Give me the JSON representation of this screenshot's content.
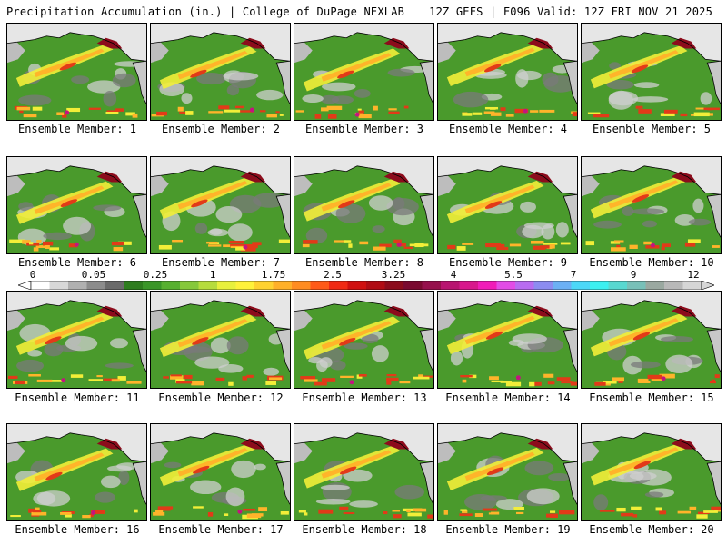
{
  "header": {
    "left": "Precipitation Accumulation (in.) | College of DuPage NEXLAB",
    "right": "12Z GEFS | F096 Valid: 12Z FRI NOV 21 2025"
  },
  "members": [
    {
      "label": "Ensemble Member: 1"
    },
    {
      "label": "Ensemble Member: 2"
    },
    {
      "label": "Ensemble Member: 3"
    },
    {
      "label": "Ensemble Member: 4"
    },
    {
      "label": "Ensemble Member: 5"
    },
    {
      "label": "Ensemble Member: 6"
    },
    {
      "label": "Ensemble Member: 7"
    },
    {
      "label": "Ensemble Member: 8"
    },
    {
      "label": "Ensemble Member: 9"
    },
    {
      "label": "Ensemble Member: 10"
    },
    {
      "label": "Ensemble Member: 11"
    },
    {
      "label": "Ensemble Member: 12"
    },
    {
      "label": "Ensemble Member: 13"
    },
    {
      "label": "Ensemble Member: 14"
    },
    {
      "label": "Ensemble Member: 15"
    },
    {
      "label": "Ensemble Member: 16"
    },
    {
      "label": "Ensemble Member: 17"
    },
    {
      "label": "Ensemble Member: 18"
    },
    {
      "label": "Ensemble Member: 19"
    },
    {
      "label": "Ensemble Member: 20"
    }
  ],
  "colorbar": {
    "tick_labels": [
      "0",
      "0.05",
      "0.25",
      "1",
      "1.75",
      "2.5",
      "3.25",
      "4",
      "5.5",
      "7",
      "9",
      "12"
    ],
    "colors": [
      "#ffffff",
      "#d8d8d8",
      "#b0b0b0",
      "#8c8c8c",
      "#6a6a6a",
      "#2e7d1e",
      "#3a9628",
      "#57b030",
      "#86c83a",
      "#b6dc3c",
      "#e8f03c",
      "#fff23a",
      "#ffd230",
      "#ffb028",
      "#ff8c20",
      "#ff5a18",
      "#f02a14",
      "#d01010",
      "#b00c14",
      "#8c0c1c",
      "#7a0a30",
      "#96104c",
      "#b81470",
      "#d8188c",
      "#f01cb8",
      "#e24ce6",
      "#b86cf0",
      "#8c8cf0",
      "#6cb0f4",
      "#4cd8f8",
      "#3cf0f0",
      "#58d8d0",
      "#78c0b8",
      "#9aa8a0",
      "#b8b8b8",
      "#d6d6d6"
    ],
    "palette_map": {
      "green": "#4a9a2c",
      "dark_green": "#2f7d1f",
      "light_green": "#6cbd34",
      "yellow": "#f2ee38",
      "orange": "#ffb42a",
      "red": "#e23a18",
      "dark_red": "#8c0c1c",
      "magenta": "#c41480",
      "purple": "#9a6cf0",
      "gray_light": "#cfcfcf",
      "gray_dark": "#7a7a7a",
      "white": "#ffffff",
      "coast": "#000000"
    }
  }
}
